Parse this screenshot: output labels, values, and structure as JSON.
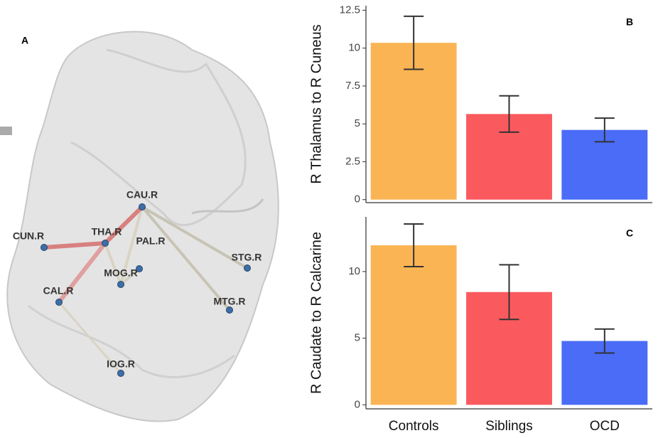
{
  "chart_data": [
    {
      "type": "bar",
      "panel": "B",
      "y_label": "R Thalamus to R Cuneus",
      "values": [
        10.35,
        5.65,
        4.6
      ],
      "errors": [
        1.75,
        1.2,
        0.78
      ],
      "colors": [
        "#fbb454",
        "#fa5a5e",
        "#4a6cf7"
      ],
      "ylim": [
        -0.2,
        12.8
      ],
      "yticks": [
        0,
        2.5,
        5,
        7.5,
        10,
        12.5
      ]
    },
    {
      "type": "bar",
      "panel": "C",
      "y_label": "R Caudate to R Calcarine",
      "categories": [
        "Controls",
        "Siblings",
        "OCD"
      ],
      "values": [
        11.97,
        8.46,
        4.79
      ],
      "errors": [
        1.6,
        2.05,
        0.9
      ],
      "colors": [
        "#fbb454",
        "#fa5a5e",
        "#4a6cf7"
      ],
      "ylim": [
        -0.3,
        14.1
      ],
      "yticks": [
        0,
        5,
        10
      ]
    }
  ],
  "panel_a": {
    "label": "A",
    "nodes": [
      "CUN.R",
      "THA.R",
      "CAU.R",
      "PAL.R",
      "MOG.R",
      "STG.R",
      "CAL.R",
      "MTG.R",
      "IOG.R"
    ]
  }
}
